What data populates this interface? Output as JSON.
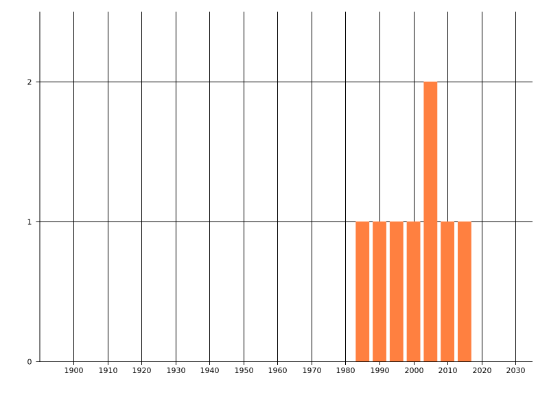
{
  "chart_data": {
    "type": "bar",
    "title": "",
    "xlabel": "",
    "ylabel": "",
    "x": [
      1985,
      1990,
      1995,
      2000,
      2005,
      2010,
      2015
    ],
    "values": [
      1,
      1,
      1,
      1,
      2,
      1,
      1
    ],
    "bar_width_years": 4,
    "xlim": [
      1890,
      2035
    ],
    "ylim": [
      0,
      2.5
    ],
    "xticks": [
      "1900",
      "1910",
      "1920",
      "1930",
      "1940",
      "1950",
      "1960",
      "1970",
      "1980",
      "1990",
      "2000",
      "2010",
      "2020",
      "2030"
    ],
    "yticks": [
      "0",
      "1",
      "2"
    ],
    "grid": true,
    "bar_color": "#ff8040",
    "legend": "none"
  }
}
